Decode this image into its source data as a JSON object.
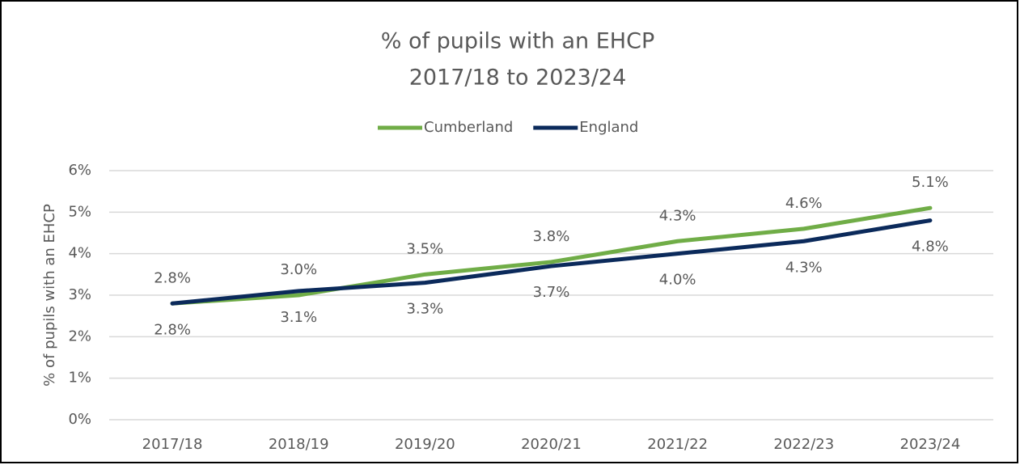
{
  "chart_data": {
    "type": "line",
    "title": "% of pupils with an EHCP",
    "subtitle": "2017/18 to 2023/24",
    "y_label": "% of pupils with an EHCP",
    "categories": [
      "2017/18",
      "2018/19",
      "2019/20",
      "2020/21",
      "2021/22",
      "2022/23",
      "2023/24"
    ],
    "series": [
      {
        "name": "Cumberland",
        "color": "#70ad47",
        "values": [
          2.8,
          3.0,
          3.5,
          3.8,
          4.3,
          4.6,
          5.1
        ],
        "value_labels": [
          "2.8%",
          "3.0%",
          "3.5%",
          "3.8%",
          "4.3%",
          "4.6%",
          "5.1%"
        ]
      },
      {
        "name": "England",
        "color": "#0b2a5b",
        "values": [
          2.8,
          3.1,
          3.3,
          3.7,
          4.0,
          4.3,
          4.8
        ],
        "value_labels": [
          "2.8%",
          "3.1%",
          "3.3%",
          "3.7%",
          "4.0%",
          "4.3%",
          "4.8%"
        ]
      }
    ],
    "ylim": [
      0,
      6
    ],
    "yticks": [
      {
        "value": 0,
        "label": "0%"
      },
      {
        "value": 1,
        "label": "1%"
      },
      {
        "value": 2,
        "label": "2%"
      },
      {
        "value": 3,
        "label": "3%"
      },
      {
        "value": 4,
        "label": "4%"
      },
      {
        "value": 5,
        "label": "5%"
      },
      {
        "value": 6,
        "label": "6%"
      }
    ],
    "grid": true,
    "legend": "top"
  }
}
